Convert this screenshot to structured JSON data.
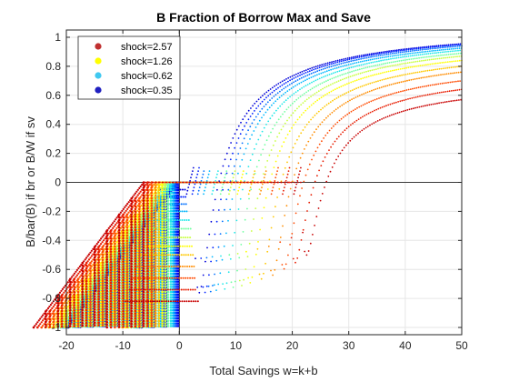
{
  "chart_data": {
    "type": "scatter",
    "title": "B Fraction of Borrow Max and Save",
    "xlabel": "Total Savings w=k+b",
    "ylabel": "B/bar(B) if br or B/W if sv",
    "xlim": [
      -20,
      50
    ],
    "ylim": [
      -1.05,
      1.05
    ],
    "xticks": [
      "-20",
      "-10",
      "0",
      "10",
      "20",
      "30",
      "40",
      "50"
    ],
    "yticks": [
      "-1",
      "-0.8",
      "-0.6",
      "-0.4",
      "-0.2",
      "0",
      "0.2",
      "0.4",
      "0.6",
      "0.8",
      "1"
    ],
    "grid": true,
    "legend_position": "top-left",
    "legend": [
      {
        "name": "shock=2.57",
        "color": "#c03030"
      },
      {
        "name": "shock=1.26",
        "color": "#ffff00"
      },
      {
        "name": "shock=0.62",
        "color": "#40c8f0"
      },
      {
        "name": "shock=0.35",
        "color": "#2020c0"
      }
    ],
    "curve_colors": [
      "#0000d8",
      "#0020ff",
      "#0070ff",
      "#00b8ff",
      "#20e8e8",
      "#70ffa0",
      "#c8ff40",
      "#ffff00",
      "#ffc800",
      "#ff8c00",
      "#ff4a00",
      "#e81c00",
      "#c80000"
    ],
    "series": [
      {
        "name": "shock=0.35",
        "save_threshold": 2.5,
        "save_at_50": 0.955,
        "borrow_max_x": -0.2,
        "borrow_floor": -0.05
      },
      {
        "name": "",
        "save_threshold": 3.5,
        "save_at_50": 0.95,
        "borrow_max_x": -0.5,
        "borrow_floor": -0.1
      },
      {
        "name": "",
        "save_threshold": 4.5,
        "save_at_50": 0.94,
        "borrow_max_x": -0.8,
        "borrow_floor": -0.15
      },
      {
        "name": "shock=0.62",
        "save_threshold": 5.5,
        "save_at_50": 0.925,
        "borrow_max_x": -1.1,
        "borrow_floor": -0.2
      },
      {
        "name": "",
        "save_threshold": 7,
        "save_at_50": 0.91,
        "borrow_max_x": -1.5,
        "borrow_floor": -0.26
      },
      {
        "name": "",
        "save_threshold": 8.5,
        "save_at_50": 0.89,
        "borrow_max_x": -2.0,
        "borrow_floor": -0.32
      },
      {
        "name": "",
        "save_threshold": 10,
        "save_at_50": 0.87,
        "borrow_max_x": -2.5,
        "borrow_floor": -0.38
      },
      {
        "name": "shock=1.26",
        "save_threshold": 11.5,
        "save_at_50": 0.84,
        "borrow_max_x": -3.0,
        "borrow_floor": -0.44
      },
      {
        "name": "",
        "save_threshold": 13.5,
        "save_at_50": 0.8,
        "borrow_max_x": -3.6,
        "borrow_floor": -0.5
      },
      {
        "name": "",
        "save_threshold": 15.5,
        "save_at_50": 0.76,
        "borrow_max_x": -4.2,
        "borrow_floor": -0.58
      },
      {
        "name": "",
        "save_threshold": 17.5,
        "save_at_50": 0.7,
        "borrow_max_x": -4.9,
        "borrow_floor": -0.66
      },
      {
        "name": "",
        "save_threshold": 19.5,
        "save_at_50": 0.64,
        "borrow_max_x": -5.6,
        "borrow_floor": -0.74
      },
      {
        "name": "shock=2.57",
        "save_threshold": 21.5,
        "save_at_50": 0.57,
        "borrow_max_x": -6.3,
        "borrow_floor": -0.82
      }
    ]
  }
}
